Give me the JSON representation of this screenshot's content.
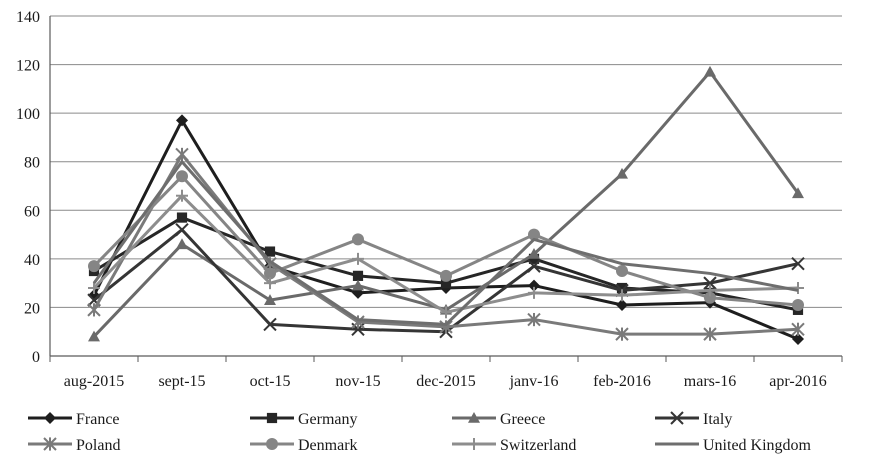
{
  "chart_data": {
    "type": "line",
    "title": "",
    "xlabel": "",
    "ylabel": "",
    "ylim": [
      0,
      140
    ],
    "yticks": [
      0,
      20,
      40,
      60,
      80,
      100,
      120,
      140
    ],
    "grid": "horizontal",
    "legend_placement": "bottom",
    "categories": [
      "aug-2015",
      "sept-15",
      "oct-15",
      "nov-15",
      "dec-2015",
      "janv-16",
      "feb-2016",
      "mars-16",
      "apr-2016"
    ],
    "series": [
      {
        "name": "France",
        "marker": "diamond",
        "color": "#1e1e1e",
        "values": [
          25,
          97,
          37,
          26,
          28,
          29,
          21,
          22,
          7
        ]
      },
      {
        "name": "Germany",
        "marker": "square",
        "color": "#262626",
        "values": [
          35,
          57,
          43,
          33,
          30,
          40,
          28,
          26,
          19
        ]
      },
      {
        "name": "Greece",
        "marker": "triangle",
        "color": "#6a6a6a",
        "values": [
          8,
          46,
          23,
          29,
          19,
          42,
          75,
          117,
          67
        ]
      },
      {
        "name": "Italy",
        "marker": "x",
        "color": "#353535",
        "values": [
          23,
          52,
          13,
          11,
          10,
          37,
          27,
          30,
          38
        ]
      },
      {
        "name": "Poland",
        "marker": "asterisk",
        "color": "#7a7a7a",
        "values": [
          19,
          83,
          38,
          14,
          12,
          15,
          9,
          9,
          11
        ]
      },
      {
        "name": "Denmark",
        "marker": "circle",
        "color": "#858585",
        "values": [
          37,
          74,
          34,
          48,
          33,
          50,
          35,
          24,
          21
        ]
      },
      {
        "name": "Switzerland",
        "marker": "plus",
        "color": "#8d8d8d",
        "values": [
          28,
          66,
          30,
          40,
          18,
          26,
          25,
          27,
          28
        ]
      },
      {
        "name": "United Kingdom",
        "marker": "none",
        "color": "#6e6e6e",
        "values": [
          30,
          80,
          39,
          15,
          13,
          48,
          38,
          34,
          27
        ]
      }
    ]
  }
}
